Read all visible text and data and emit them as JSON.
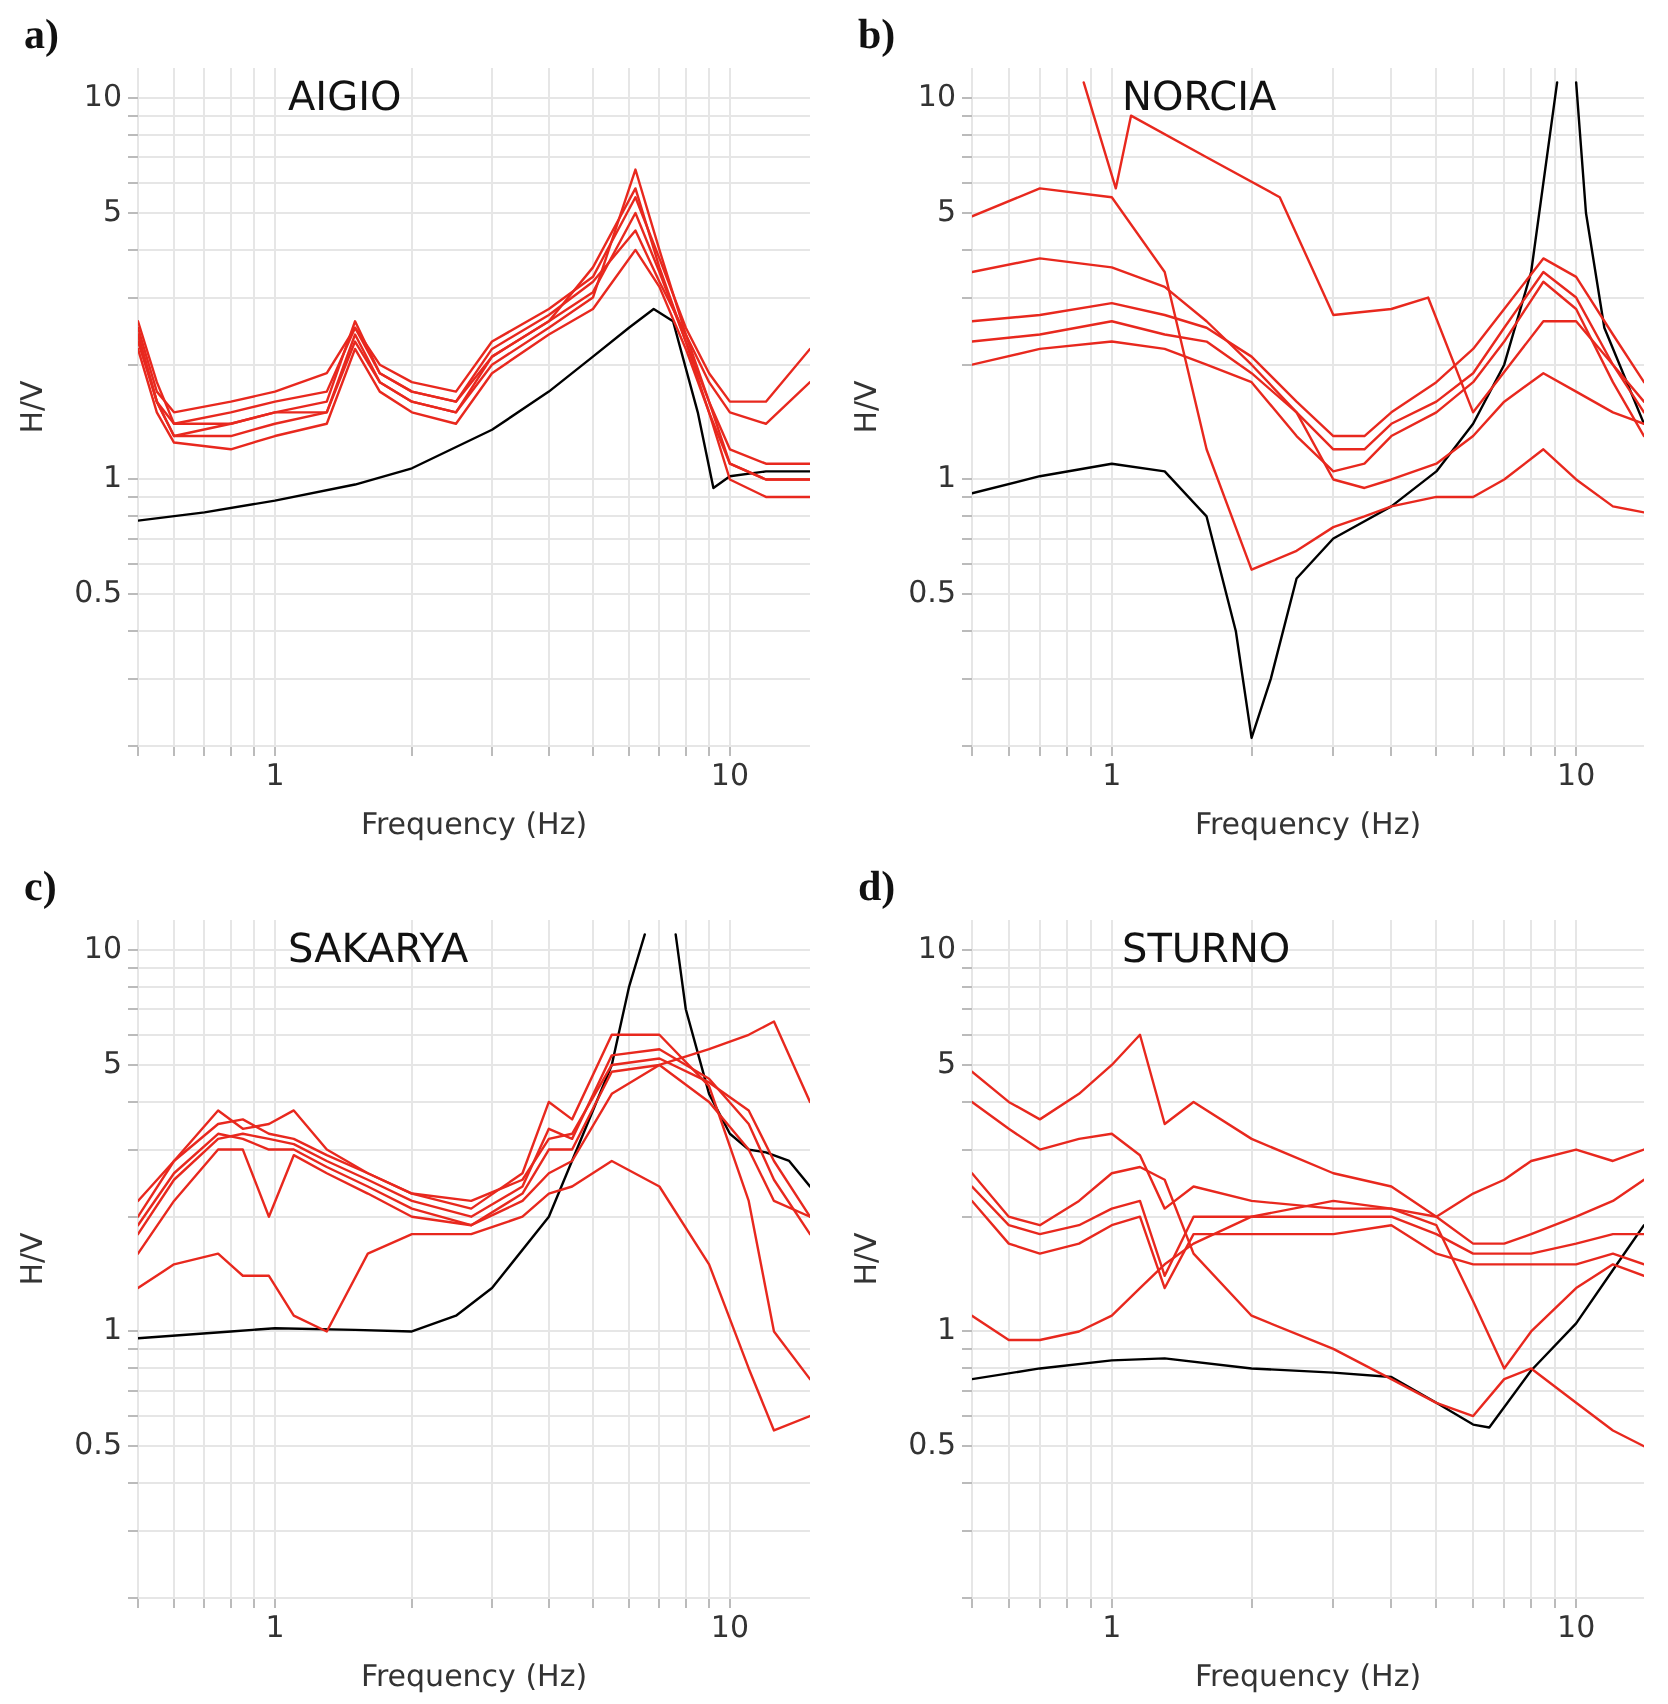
{
  "chart_data": [
    {
      "type": "line",
      "title": "AIGIO",
      "annotations": [
        "a)"
      ],
      "xlabel": "Frequency (Hz)",
      "ylabel": "H/V",
      "log": "xy",
      "grid": true,
      "xlim": [
        0.5,
        15
      ],
      "ylim": [
        0.2,
        12
      ],
      "xticks": [
        {
          "value": 0.5,
          "label": null
        },
        {
          "value": 0.6,
          "label": null
        },
        {
          "value": 0.7,
          "label": null
        },
        {
          "value": 0.8,
          "label": null
        },
        {
          "value": 0.9,
          "label": null
        },
        {
          "value": 1,
          "label": "1"
        },
        {
          "value": 2,
          "label": null
        },
        {
          "value": 3,
          "label": null
        },
        {
          "value": 4,
          "label": null
        },
        {
          "value": 5,
          "label": null
        },
        {
          "value": 6,
          "label": null
        },
        {
          "value": 7,
          "label": null
        },
        {
          "value": 8,
          "label": null
        },
        {
          "value": 9,
          "label": null
        },
        {
          "value": 10,
          "label": "10"
        }
      ],
      "yticks": [
        {
          "value": 0.2,
          "label": null
        },
        {
          "value": 0.3,
          "label": null
        },
        {
          "value": 0.4,
          "label": null
        },
        0.5,
        {
          "value": 0.6,
          "label": null
        },
        {
          "value": 0.7,
          "label": null
        },
        {
          "value": 0.8,
          "label": null
        },
        {
          "value": 0.9,
          "label": null
        },
        1,
        {
          "value": 2,
          "label": null
        },
        {
          "value": 3,
          "label": null
        },
        {
          "value": 4,
          "label": null
        },
        5,
        {
          "value": 6,
          "label": null
        },
        {
          "value": 7,
          "label": null
        },
        {
          "value": 8,
          "label": null
        },
        {
          "value": 9,
          "label": null
        },
        10
      ],
      "x": [
        0.5,
        0.55,
        0.6,
        0.8,
        1,
        1.3,
        1.5,
        1.7,
        2,
        2.5,
        3,
        4,
        5,
        6.2,
        7,
        8,
        9,
        10,
        12,
        15
      ],
      "series": [
        {
          "color": "#e8281e",
          "values": [
            2.6,
            1.8,
            1.4,
            1.4,
            1.5,
            1.6,
            2.6,
            1.9,
            1.7,
            1.6,
            2.1,
            2.6,
            3.1,
            5.0,
            3.5,
            2.3,
            1.5,
            1.1,
            1.0,
            1.0
          ]
        },
        {
          "color": "#e8281e",
          "values": [
            2.4,
            1.6,
            1.3,
            1.3,
            1.4,
            1.5,
            2.4,
            1.8,
            1.6,
            1.5,
            2.0,
            2.5,
            3.0,
            6.5,
            4.0,
            2.4,
            1.6,
            1.2,
            1.1,
            1.1
          ]
        },
        {
          "color": "#e8281e",
          "values": [
            2.2,
            1.5,
            1.25,
            1.2,
            1.3,
            1.4,
            2.2,
            1.7,
            1.5,
            1.4,
            1.9,
            2.4,
            2.8,
            4.0,
            3.2,
            2.2,
            1.5,
            1.0,
            0.9,
            0.9
          ]
        },
        {
          "color": "#e8281e",
          "values": [
            2.5,
            1.7,
            1.5,
            1.6,
            1.7,
            1.9,
            2.5,
            2.0,
            1.8,
            1.7,
            2.3,
            2.8,
            3.4,
            5.5,
            3.8,
            2.5,
            1.9,
            1.6,
            1.6,
            2.2
          ]
        },
        {
          "color": "#e8281e",
          "values": [
            2.3,
            1.6,
            1.4,
            1.5,
            1.6,
            1.7,
            2.5,
            1.9,
            1.7,
            1.6,
            2.2,
            2.7,
            3.3,
            4.5,
            3.3,
            2.4,
            1.8,
            1.5,
            1.4,
            1.8
          ]
        },
        {
          "color": "#e8281e",
          "values": [
            2.4,
            1.6,
            1.3,
            1.4,
            1.5,
            1.5,
            2.3,
            1.8,
            1.6,
            1.5,
            2.1,
            2.6,
            3.6,
            5.8,
            3.6,
            2.3,
            1.6,
            1.1,
            1.0,
            1.0
          ]
        },
        {
          "color": "#000000",
          "x": [
            0.5,
            0.7,
            1,
            1.5,
            2,
            3,
            4,
            5,
            6,
            6.8,
            7.5,
            8.5,
            9.2,
            10,
            12,
            15
          ],
          "values": [
            0.78,
            0.82,
            0.88,
            0.97,
            1.07,
            1.35,
            1.7,
            2.1,
            2.5,
            2.8,
            2.6,
            1.5,
            0.95,
            1.02,
            1.05,
            1.05
          ]
        }
      ]
    },
    {
      "type": "line",
      "title": "NORCIA",
      "annotations": [
        "b)"
      ],
      "xlabel": "Frequency (Hz)",
      "ylabel": "H/V",
      "log": "xy",
      "grid": true,
      "xlim": [
        0.5,
        14
      ],
      "ylim": [
        0.2,
        12
      ],
      "xticks": [
        {
          "value": 0.5,
          "label": null
        },
        {
          "value": 0.6,
          "label": null
        },
        {
          "value": 0.7,
          "label": null
        },
        {
          "value": 0.8,
          "label": null
        },
        {
          "value": 0.9,
          "label": null
        },
        {
          "value": 1,
          "label": "1"
        },
        {
          "value": 2,
          "label": null
        },
        {
          "value": 3,
          "label": null
        },
        {
          "value": 4,
          "label": null
        },
        {
          "value": 5,
          "label": null
        },
        {
          "value": 6,
          "label": null
        },
        {
          "value": 7,
          "label": null
        },
        {
          "value": 8,
          "label": null
        },
        {
          "value": 9,
          "label": null
        },
        {
          "value": 10,
          "label": "10"
        }
      ],
      "yticks": [
        {
          "value": 0.2,
          "label": null
        },
        {
          "value": 0.3,
          "label": null
        },
        {
          "value": 0.4,
          "label": null
        },
        0.5,
        {
          "value": 0.6,
          "label": null
        },
        {
          "value": 0.7,
          "label": null
        },
        {
          "value": 0.8,
          "label": null
        },
        {
          "value": 0.9,
          "label": null
        },
        1,
        {
          "value": 2,
          "label": null
        },
        {
          "value": 3,
          "label": null
        },
        {
          "value": 4,
          "label": null
        },
        5,
        {
          "value": 6,
          "label": null
        },
        {
          "value": 7,
          "label": null
        },
        {
          "value": 8,
          "label": null
        },
        {
          "value": 9,
          "label": null
        },
        10
      ],
      "x": [
        0.5,
        0.7,
        1,
        1.3,
        1.6,
        2,
        2.5,
        3,
        3.5,
        4,
        5,
        6,
        7,
        8.5,
        10,
        12,
        14
      ],
      "series": [
        {
          "color": "#e8281e",
          "values": [
            2.3,
            2.4,
            2.6,
            2.4,
            2.3,
            1.9,
            1.5,
            1.2,
            1.2,
            1.4,
            1.6,
            1.9,
            2.5,
            3.5,
            3.0,
            2.0,
            1.5
          ]
        },
        {
          "color": "#e8281e",
          "values": [
            2.0,
            2.2,
            2.3,
            2.2,
            2.0,
            1.8,
            1.3,
            1.05,
            1.1,
            1.3,
            1.5,
            1.8,
            2.3,
            3.3,
            2.8,
            1.8,
            1.3
          ]
        },
        {
          "color": "#e8281e",
          "values": [
            2.6,
            2.7,
            2.9,
            2.7,
            2.5,
            2.1,
            1.6,
            1.3,
            1.3,
            1.5,
            1.8,
            2.2,
            2.8,
            3.8,
            3.4,
            2.4,
            1.8
          ]
        },
        {
          "color": "#e8281e",
          "values": [
            3.5,
            3.8,
            3.6,
            3.2,
            2.6,
            2.0,
            1.5,
            1.0,
            0.95,
            1.0,
            1.1,
            1.3,
            1.6,
            1.9,
            1.7,
            1.5,
            1.4
          ]
        },
        {
          "color": "#e8281e",
          "values": [
            4.9,
            5.8,
            5.5,
            3.5,
            1.2,
            0.58,
            0.65,
            0.75,
            0.8,
            0.85,
            0.9,
            0.9,
            1.0,
            1.2,
            1.0,
            0.85,
            0.82
          ]
        },
        {
          "color": "#e8281e",
          "x": [
            0.87,
            1.02,
            1.1,
            1.6,
            2.3,
            3,
            4,
            4.8,
            6,
            8.5,
            10,
            12,
            14
          ],
          "values": [
            11,
            5.8,
            9,
            7,
            5.5,
            2.7,
            2.8,
            3,
            1.5,
            2.6,
            2.6,
            2.0,
            1.6
          ]
        },
        {
          "color": "#000000",
          "x": [
            0.5,
            0.7,
            1,
            1.3,
            1.6,
            1.85,
            2.0,
            2.2,
            2.5,
            3,
            4,
            5,
            6,
            7,
            8,
            9.1,
            9.55,
            10,
            10.5,
            11.5,
            14
          ],
          "values": [
            0.92,
            1.02,
            1.1,
            1.05,
            0.8,
            0.4,
            0.21,
            0.3,
            0.55,
            0.7,
            0.85,
            1.05,
            1.4,
            2.0,
            3.5,
            11,
            null,
            11,
            5,
            2.5,
            1.4
          ]
        }
      ]
    },
    {
      "type": "line",
      "title": "SAKARYA",
      "annotations": [
        "c)"
      ],
      "xlabel": "Frequency (Hz)",
      "ylabel": "H/V",
      "log": "xy",
      "grid": true,
      "xlim": [
        0.5,
        15
      ],
      "ylim": [
        0.2,
        12
      ],
      "xticks": [
        {
          "value": 0.5,
          "label": null
        },
        {
          "value": 0.6,
          "label": null
        },
        {
          "value": 0.7,
          "label": null
        },
        {
          "value": 0.8,
          "label": null
        },
        {
          "value": 0.9,
          "label": null
        },
        {
          "value": 1,
          "label": "1"
        },
        {
          "value": 2,
          "label": null
        },
        {
          "value": 3,
          "label": null
        },
        {
          "value": 4,
          "label": null
        },
        {
          "value": 5,
          "label": null
        },
        {
          "value": 6,
          "label": null
        },
        {
          "value": 7,
          "label": null
        },
        {
          "value": 8,
          "label": null
        },
        {
          "value": 9,
          "label": null
        },
        {
          "value": 10,
          "label": "10"
        }
      ],
      "yticks": [
        {
          "value": 0.2,
          "label": null
        },
        {
          "value": 0.3,
          "label": null
        },
        {
          "value": 0.4,
          "label": null
        },
        0.5,
        {
          "value": 0.6,
          "label": null
        },
        {
          "value": 0.7,
          "label": null
        },
        {
          "value": 0.8,
          "label": null
        },
        {
          "value": 0.9,
          "label": null
        },
        1,
        {
          "value": 2,
          "label": null
        },
        {
          "value": 3,
          "label": null
        },
        {
          "value": 4,
          "label": null
        },
        5,
        {
          "value": 6,
          "label": null
        },
        {
          "value": 7,
          "label": null
        },
        {
          "value": 8,
          "label": null
        },
        {
          "value": 9,
          "label": null
        },
        10
      ],
      "x": [
        0.5,
        0.6,
        0.75,
        0.85,
        0.97,
        1.1,
        1.3,
        1.6,
        2,
        2.7,
        3.5,
        4,
        4.5,
        5.5,
        7,
        9,
        11,
        12.5,
        15
      ],
      "series": [
        {
          "color": "#e8281e",
          "values": [
            1.8,
            2.5,
            3.2,
            3.3,
            3.2,
            3.1,
            2.8,
            2.5,
            2.2,
            2.0,
            2.4,
            3.4,
            3.2,
            5.3,
            5.5,
            4.6,
            3.5,
            2.5,
            1.8
          ]
        },
        {
          "color": "#e8281e",
          "values": [
            1.6,
            2.2,
            3.0,
            3.0,
            2.0,
            2.9,
            2.6,
            2.3,
            2.0,
            1.9,
            2.3,
            3.0,
            3.0,
            4.8,
            5.0,
            4.0,
            3.0,
            2.2,
            2.0
          ]
        },
        {
          "color": "#e8281e",
          "values": [
            2.0,
            2.8,
            3.8,
            3.4,
            3.5,
            3.8,
            3.0,
            2.6,
            2.3,
            2.1,
            2.6,
            4.0,
            3.6,
            6.0,
            6.0,
            4.4,
            2.2,
            1.0,
            0.75
          ]
        },
        {
          "color": "#e8281e",
          "values": [
            1.9,
            2.6,
            3.3,
            3.2,
            3.0,
            3.0,
            2.7,
            2.4,
            2.1,
            1.9,
            2.2,
            2.6,
            2.8,
            4.2,
            5.0,
            5.5,
            6.0,
            6.5,
            4.0
          ]
        },
        {
          "color": "#e8281e",
          "values": [
            1.3,
            1.5,
            1.6,
            1.4,
            1.4,
            1.1,
            1.0,
            1.6,
            1.8,
            1.8,
            2.0,
            2.3,
            2.4,
            2.8,
            2.4,
            1.5,
            0.8,
            0.55,
            0.6
          ]
        },
        {
          "color": "#e8281e",
          "values": [
            2.2,
            2.8,
            3.5,
            3.6,
            3.3,
            3.2,
            2.9,
            2.6,
            2.3,
            2.2,
            2.5,
            3.2,
            3.3,
            5.0,
            5.2,
            4.5,
            3.8,
            2.8,
            2.0
          ]
        },
        {
          "color": "#000000",
          "x": [
            0.5,
            0.8,
            1,
            1.5,
            2,
            2.5,
            3,
            4,
            5,
            5.5,
            6,
            6.5,
            7,
            7.6,
            8,
            9,
            10,
            11,
            12,
            13.5,
            15
          ],
          "values": [
            0.96,
            1.0,
            1.02,
            1.01,
            1.0,
            1.1,
            1.3,
            2.0,
            3.8,
            5.0,
            8,
            11,
            null,
            11,
            7,
            4.2,
            3.3,
            3.0,
            2.95,
            2.8,
            2.4
          ]
        }
      ]
    },
    {
      "type": "line",
      "title": "STURNO",
      "annotations": [
        "d)"
      ],
      "xlabel": "Frequency (Hz)",
      "ylabel": "H/V",
      "log": "xy",
      "grid": true,
      "xlim": [
        0.5,
        14
      ],
      "ylim": [
        0.2,
        12
      ],
      "xticks": [
        {
          "value": 0.5,
          "label": null
        },
        {
          "value": 0.6,
          "label": null
        },
        {
          "value": 0.7,
          "label": null
        },
        {
          "value": 0.8,
          "label": null
        },
        {
          "value": 0.9,
          "label": null
        },
        {
          "value": 1,
          "label": "1"
        },
        {
          "value": 2,
          "label": null
        },
        {
          "value": 3,
          "label": null
        },
        {
          "value": 4,
          "label": null
        },
        {
          "value": 5,
          "label": null
        },
        {
          "value": 6,
          "label": null
        },
        {
          "value": 7,
          "label": null
        },
        {
          "value": 8,
          "label": null
        },
        {
          "value": 9,
          "label": null
        },
        {
          "value": 10,
          "label": "10"
        }
      ],
      "yticks": [
        {
          "value": 0.2,
          "label": null
        },
        {
          "value": 0.3,
          "label": null
        },
        {
          "value": 0.4,
          "label": null
        },
        0.5,
        {
          "value": 0.6,
          "label": null
        },
        {
          "value": 0.7,
          "label": null
        },
        {
          "value": 0.8,
          "label": null
        },
        {
          "value": 0.9,
          "label": null
        },
        1,
        {
          "value": 2,
          "label": null
        },
        {
          "value": 3,
          "label": null
        },
        {
          "value": 4,
          "label": null
        },
        5,
        {
          "value": 6,
          "label": null
        },
        {
          "value": 7,
          "label": null
        },
        {
          "value": 8,
          "label": null
        },
        {
          "value": 9,
          "label": null
        },
        10
      ],
      "x": [
        0.5,
        0.6,
        0.7,
        0.85,
        1,
        1.15,
        1.3,
        1.5,
        2,
        3,
        4,
        5,
        6,
        7,
        8,
        10,
        12,
        14
      ],
      "series": [
        {
          "color": "#e8281e",
          "values": [
            2.4,
            1.9,
            1.8,
            1.9,
            2.1,
            2.2,
            1.4,
            2.0,
            2.0,
            2.0,
            2.0,
            1.8,
            1.6,
            1.6,
            1.6,
            1.7,
            1.8,
            1.8
          ]
        },
        {
          "color": "#e8281e",
          "values": [
            2.2,
            1.7,
            1.6,
            1.7,
            1.9,
            2.0,
            1.3,
            1.8,
            1.8,
            1.8,
            1.9,
            1.6,
            1.5,
            1.5,
            1.5,
            1.5,
            1.6,
            1.5
          ]
        },
        {
          "color": "#e8281e",
          "values": [
            4.8,
            4.0,
            3.6,
            4.2,
            5.0,
            6.0,
            3.5,
            4.0,
            3.2,
            2.6,
            2.4,
            2.0,
            1.7,
            1.7,
            1.8,
            2.0,
            2.2,
            2.5
          ]
        },
        {
          "color": "#e8281e",
          "values": [
            4.0,
            3.4,
            3.0,
            3.2,
            3.3,
            2.9,
            2.1,
            2.4,
            2.2,
            2.1,
            2.1,
            1.9,
            1.2,
            0.8,
            1.0,
            1.3,
            1.5,
            1.4
          ]
        },
        {
          "color": "#e8281e",
          "values": [
            1.1,
            0.95,
            0.95,
            1.0,
            1.1,
            1.3,
            1.5,
            1.7,
            2.0,
            2.2,
            2.1,
            2.0,
            2.3,
            2.5,
            2.8,
            3.0,
            2.8,
            3.0
          ]
        },
        {
          "color": "#e8281e",
          "values": [
            2.6,
            2.0,
            1.9,
            2.2,
            2.6,
            2.7,
            2.5,
            1.6,
            1.1,
            0.9,
            0.75,
            0.65,
            0.6,
            0.75,
            0.8,
            0.65,
            0.55,
            0.5
          ]
        },
        {
          "color": "#000000",
          "x": [
            0.5,
            0.7,
            1,
            1.3,
            2,
            3,
            4,
            5,
            6,
            6.5,
            8,
            10,
            12,
            14
          ],
          "values": [
            0.75,
            0.8,
            0.84,
            0.85,
            0.8,
            0.78,
            0.76,
            0.65,
            0.57,
            0.56,
            0.79,
            1.05,
            1.45,
            1.9
          ]
        }
      ]
    }
  ]
}
